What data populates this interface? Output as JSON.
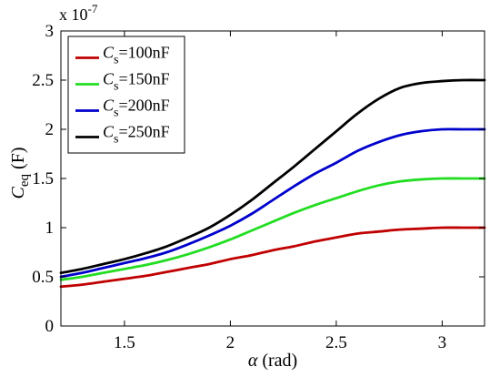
{
  "chart_data": {
    "type": "line",
    "title": "",
    "xlabel": {
      "symbol": "α",
      "unit": " (rad)"
    },
    "ylabel": {
      "symbol": "C",
      "subscript": "eq",
      "unit": " (F)"
    },
    "y_multiplier": {
      "base": "x 10",
      "exponent": "-7"
    },
    "xlim": [
      1.2,
      3.2
    ],
    "ylim": [
      0,
      3
    ],
    "xticks": [
      1.5,
      2,
      2.5,
      3
    ],
    "xtick_labels": [
      "1.5",
      "2",
      "2.5",
      "3"
    ],
    "yticks": [
      0,
      0.5,
      1,
      1.5,
      2,
      2.5,
      3
    ],
    "ytick_labels": [
      "0",
      "0.5",
      "1",
      "1.5",
      "2",
      "2.5",
      "3"
    ],
    "grid": false,
    "legend_position": "top-left",
    "x": [
      1.2,
      1.3,
      1.4,
      1.5,
      1.6,
      1.7,
      1.8,
      1.9,
      2.0,
      2.1,
      2.2,
      2.3,
      2.4,
      2.5,
      2.6,
      2.7,
      2.8,
      2.9,
      3.0,
      3.1,
      3.2
    ],
    "series": [
      {
        "label": {
          "symbol": "C",
          "subscript": "s",
          "value": "=100nF"
        },
        "color": "#c00000",
        "values": [
          0.4,
          0.42,
          0.45,
          0.48,
          0.51,
          0.55,
          0.59,
          0.63,
          0.68,
          0.72,
          0.77,
          0.81,
          0.86,
          0.9,
          0.94,
          0.96,
          0.98,
          0.99,
          1.0,
          1.0,
          1.0
        ]
      },
      {
        "label": {
          "symbol": "C",
          "subscript": "s",
          "value": "=150nF"
        },
        "color": "#22dd22",
        "values": [
          0.47,
          0.5,
          0.54,
          0.58,
          0.62,
          0.67,
          0.73,
          0.8,
          0.88,
          0.97,
          1.06,
          1.15,
          1.23,
          1.3,
          1.37,
          1.43,
          1.47,
          1.49,
          1.5,
          1.5,
          1.5
        ]
      },
      {
        "label": {
          "symbol": "C",
          "subscript": "s",
          "value": "=200nF"
        },
        "color": "#0000cc",
        "values": [
          0.5,
          0.54,
          0.59,
          0.64,
          0.69,
          0.75,
          0.83,
          0.92,
          1.02,
          1.14,
          1.28,
          1.42,
          1.55,
          1.66,
          1.78,
          1.87,
          1.94,
          1.98,
          2.0,
          2.0,
          2.0
        ]
      },
      {
        "label": {
          "symbol": "C",
          "subscript": "s",
          "value": "=250nF"
        },
        "color": "#000000",
        "values": [
          0.54,
          0.58,
          0.63,
          0.68,
          0.74,
          0.81,
          0.9,
          1.0,
          1.13,
          1.28,
          1.45,
          1.62,
          1.8,
          1.98,
          2.16,
          2.31,
          2.42,
          2.47,
          2.49,
          2.5,
          2.5
        ]
      }
    ]
  }
}
